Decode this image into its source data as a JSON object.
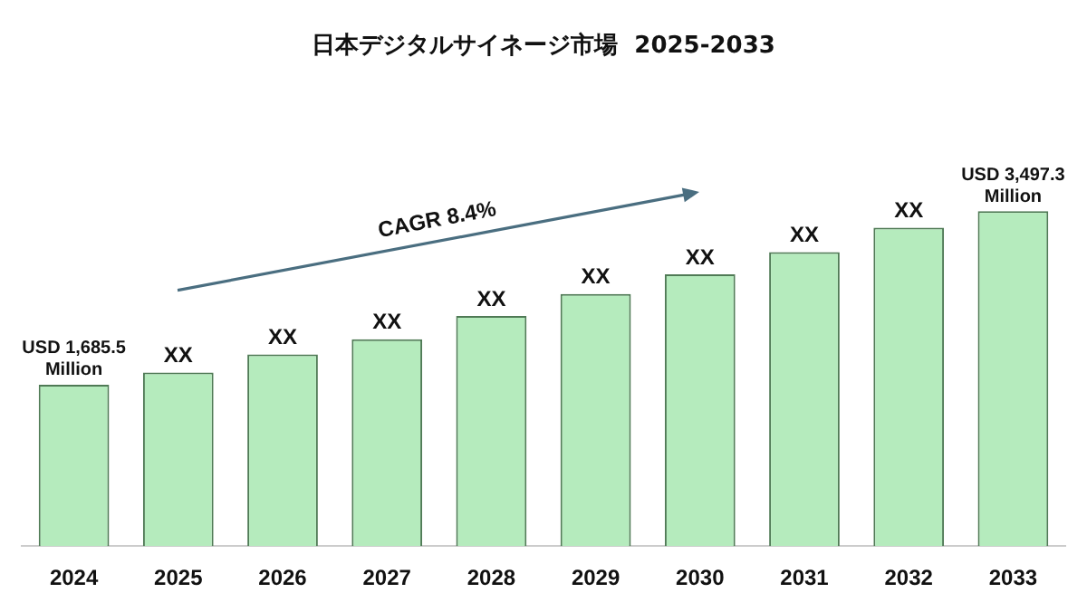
{
  "chart_data": {
    "type": "bar",
    "title": "日本デジタルサイネージ市場  2025-2033",
    "categories": [
      "2024",
      "2025",
      "2026",
      "2027",
      "2028",
      "2029",
      "2030",
      "2031",
      "2032",
      "2033"
    ],
    "values": [
      1685.5,
      1812,
      2001,
      2159,
      2402,
      2632,
      2839,
      3069,
      3324,
      3497.3
    ],
    "value_labels": [
      "USD 1,685.5 Million",
      "XX",
      "XX",
      "XX",
      "XX",
      "XX",
      "XX",
      "XX",
      "XX",
      "USD 3,497.3 Million"
    ],
    "color": "#b5ebbd",
    "annotations": [
      "CAGR 8.4%"
    ]
  }
}
